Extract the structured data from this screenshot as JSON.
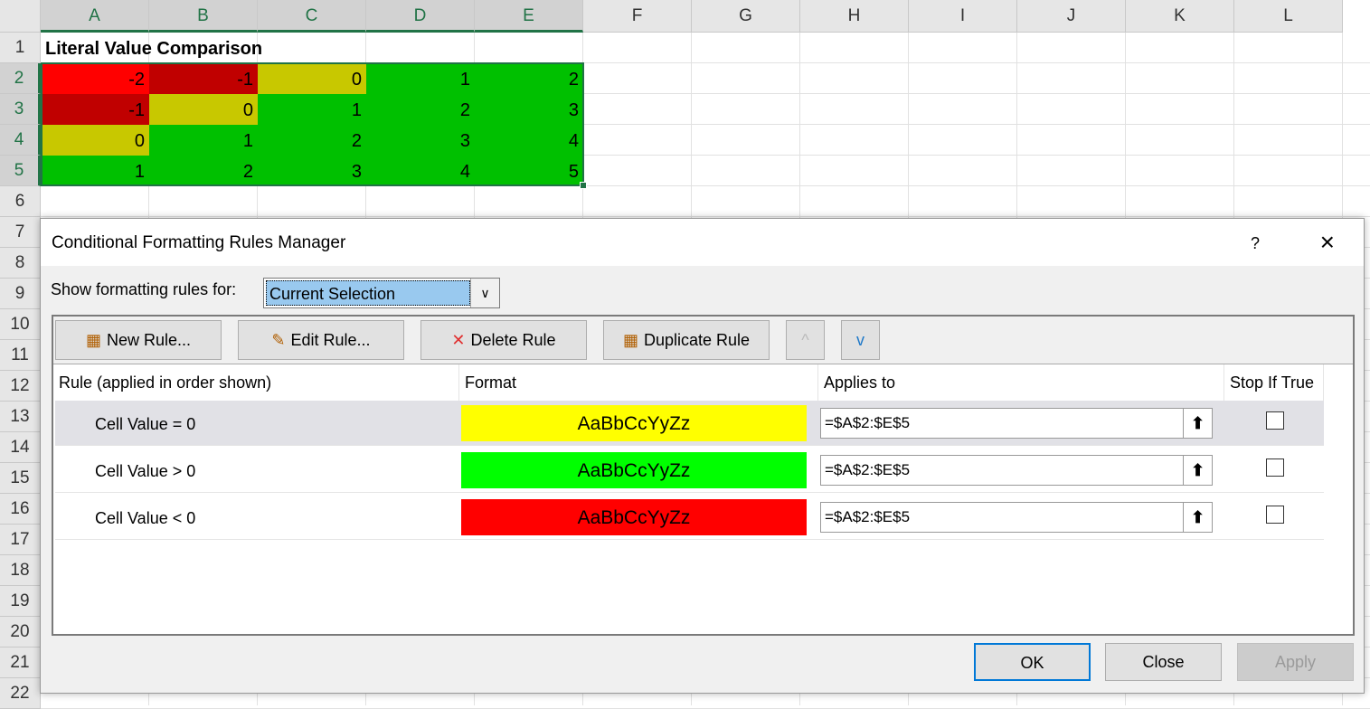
{
  "sheet": {
    "columns": [
      "A",
      "B",
      "C",
      "D",
      "E",
      "F",
      "G",
      "H",
      "I",
      "J",
      "K",
      "L"
    ],
    "rows": [
      "1",
      "2",
      "3",
      "4",
      "5",
      "6",
      "7",
      "8",
      "9",
      "10",
      "11",
      "12",
      "13",
      "14",
      "15",
      "16",
      "17",
      "18",
      "19",
      "20",
      "21",
      "22"
    ],
    "title": "Literal Value Comparison",
    "values": [
      [
        "-2",
        "-1",
        "0",
        "1",
        "2"
      ],
      [
        "-1",
        "0",
        "1",
        "2",
        "3"
      ],
      [
        "0",
        "1",
        "2",
        "3",
        "4"
      ],
      [
        "1",
        "2",
        "3",
        "4",
        "5"
      ]
    ],
    "fill_colors": {
      "negative_2": "#ff0000",
      "negative": "#c00000",
      "zero": "#c8c800",
      "positive": "#00c000"
    }
  },
  "dialog": {
    "title": "Conditional Formatting Rules Manager",
    "help": "?",
    "close_icon": "×",
    "show_label": "Show formatting rules for:",
    "show_value": "Current Selection",
    "toolbar": {
      "new_rule": "New Rule...",
      "edit_rule": "Edit Rule...",
      "delete_rule": "Delete Rule",
      "duplicate_rule": "Duplicate Rule",
      "move_up": "^",
      "move_down": "v"
    },
    "headers": {
      "rule": "Rule (applied in order shown)",
      "format": "Format",
      "applies": "Applies to",
      "stop": "Stop If True"
    },
    "rules": [
      {
        "rule": "Cell Value = 0",
        "preview": "AaBbCcYyZz",
        "color": "#ffff00",
        "applies": "=$A$2:$E$5",
        "stop": false
      },
      {
        "rule": "Cell Value > 0",
        "preview": "AaBbCcYyZz",
        "color": "#00ff00",
        "applies": "=$A$2:$E$5",
        "stop": false
      },
      {
        "rule": "Cell Value < 0",
        "preview": "AaBbCcYyZz",
        "color": "#ff0000",
        "applies": "=$A$2:$E$5",
        "stop": false
      }
    ],
    "ok": "OK",
    "close": "Close",
    "apply": "Apply"
  }
}
